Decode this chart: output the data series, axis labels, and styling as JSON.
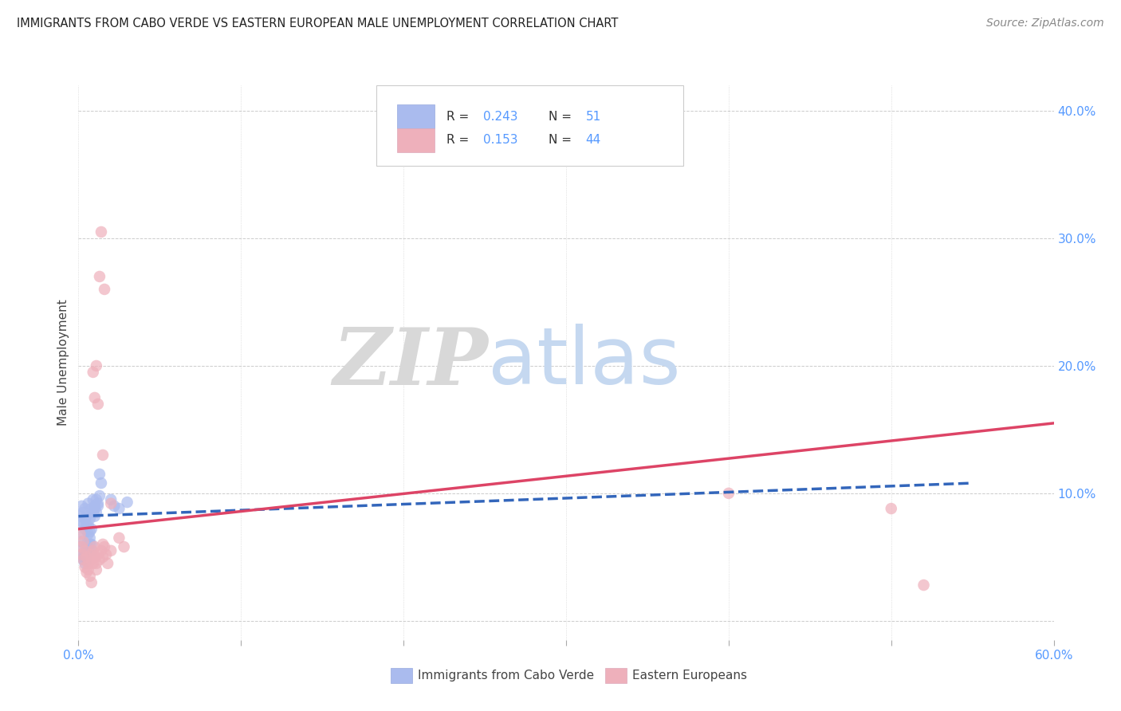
{
  "title": "IMMIGRANTS FROM CABO VERDE VS EASTERN EUROPEAN MALE UNEMPLOYMENT CORRELATION CHART",
  "source": "Source: ZipAtlas.com",
  "tick_color": "#5599ff",
  "ylabel": "Male Unemployment",
  "xlim": [
    0.0,
    0.6
  ],
  "ylim": [
    -0.015,
    0.42
  ],
  "x_ticks": [
    0.0,
    0.1,
    0.2,
    0.3,
    0.4,
    0.5,
    0.6
  ],
  "x_tick_labels_show": [
    "0.0%",
    "60.0%"
  ],
  "y_ticks_right": [
    0.1,
    0.2,
    0.3,
    0.4
  ],
  "y_tick_labels_right": [
    "10.0%",
    "20.0%",
    "30.0%",
    "40.0%"
  ],
  "legend_label1": "Immigrants from Cabo Verde",
  "legend_label2": "Eastern Europeans",
  "blue_color": "#88aaee",
  "pink_color": "#ee8899",
  "blue_fill": "#aabbee",
  "pink_fill": "#eeb0bb",
  "blue_line_color": "#3366bb",
  "pink_line_color": "#dd4466",
  "blue_scatter": [
    [
      0.001,
      0.082
    ],
    [
      0.002,
      0.09
    ],
    [
      0.002,
      0.078
    ],
    [
      0.003,
      0.085
    ],
    [
      0.003,
      0.075
    ],
    [
      0.003,
      0.068
    ],
    [
      0.004,
      0.08
    ],
    [
      0.004,
      0.072
    ],
    [
      0.004,
      0.088
    ],
    [
      0.005,
      0.075
    ],
    [
      0.005,
      0.082
    ],
    [
      0.005,
      0.06
    ],
    [
      0.005,
      0.055
    ],
    [
      0.006,
      0.092
    ],
    [
      0.006,
      0.068
    ],
    [
      0.006,
      0.075
    ],
    [
      0.007,
      0.08
    ],
    [
      0.007,
      0.065
    ],
    [
      0.007,
      0.07
    ],
    [
      0.008,
      0.088
    ],
    [
      0.008,
      0.06
    ],
    [
      0.008,
      0.072
    ],
    [
      0.009,
      0.085
    ],
    [
      0.009,
      0.095
    ],
    [
      0.01,
      0.09
    ],
    [
      0.01,
      0.082
    ],
    [
      0.01,
      0.088
    ],
    [
      0.011,
      0.095
    ],
    [
      0.011,
      0.085
    ],
    [
      0.012,
      0.09
    ],
    [
      0.012,
      0.092
    ],
    [
      0.013,
      0.098
    ],
    [
      0.013,
      0.115
    ],
    [
      0.014,
      0.108
    ],
    [
      0.001,
      0.058
    ],
    [
      0.002,
      0.062
    ],
    [
      0.002,
      0.052
    ],
    [
      0.003,
      0.05
    ],
    [
      0.003,
      0.048
    ],
    [
      0.004,
      0.052
    ],
    [
      0.004,
      0.045
    ],
    [
      0.005,
      0.048
    ],
    [
      0.005,
      0.05
    ],
    [
      0.006,
      0.058
    ],
    [
      0.006,
      0.055
    ],
    [
      0.007,
      0.06
    ],
    [
      0.008,
      0.055
    ],
    [
      0.02,
      0.095
    ],
    [
      0.022,
      0.09
    ],
    [
      0.025,
      0.088
    ],
    [
      0.03,
      0.093
    ]
  ],
  "pink_scatter": [
    [
      0.001,
      0.068
    ],
    [
      0.002,
      0.058
    ],
    [
      0.002,
      0.052
    ],
    [
      0.003,
      0.048
    ],
    [
      0.003,
      0.062
    ],
    [
      0.004,
      0.055
    ],
    [
      0.004,
      0.042
    ],
    [
      0.005,
      0.05
    ],
    [
      0.005,
      0.038
    ],
    [
      0.006,
      0.045
    ],
    [
      0.006,
      0.04
    ],
    [
      0.007,
      0.035
    ],
    [
      0.007,
      0.052
    ],
    [
      0.008,
      0.048
    ],
    [
      0.008,
      0.03
    ],
    [
      0.009,
      0.045
    ],
    [
      0.009,
      0.055
    ],
    [
      0.01,
      0.058
    ],
    [
      0.01,
      0.05
    ],
    [
      0.011,
      0.045
    ],
    [
      0.011,
      0.04
    ],
    [
      0.012,
      0.052
    ],
    [
      0.013,
      0.048
    ],
    [
      0.014,
      0.055
    ],
    [
      0.015,
      0.06
    ],
    [
      0.015,
      0.05
    ],
    [
      0.016,
      0.058
    ],
    [
      0.017,
      0.052
    ],
    [
      0.018,
      0.045
    ],
    [
      0.02,
      0.055
    ],
    [
      0.009,
      0.195
    ],
    [
      0.01,
      0.175
    ],
    [
      0.013,
      0.27
    ],
    [
      0.014,
      0.305
    ],
    [
      0.016,
      0.26
    ],
    [
      0.011,
      0.2
    ],
    [
      0.012,
      0.17
    ],
    [
      0.015,
      0.13
    ],
    [
      0.02,
      0.092
    ],
    [
      0.025,
      0.065
    ],
    [
      0.028,
      0.058
    ],
    [
      0.52,
      0.028
    ],
    [
      0.4,
      0.1
    ],
    [
      0.5,
      0.088
    ]
  ],
  "blue_trend": {
    "x_start": 0.0,
    "x_end": 0.55,
    "y_start": 0.082,
    "y_end": 0.108
  },
  "pink_trend": {
    "x_start": 0.0,
    "x_end": 0.6,
    "y_start": 0.072,
    "y_end": 0.155
  },
  "watermark_zip": "ZIP",
  "watermark_atlas": "atlas",
  "background_color": "#ffffff",
  "grid_color": "#cccccc"
}
